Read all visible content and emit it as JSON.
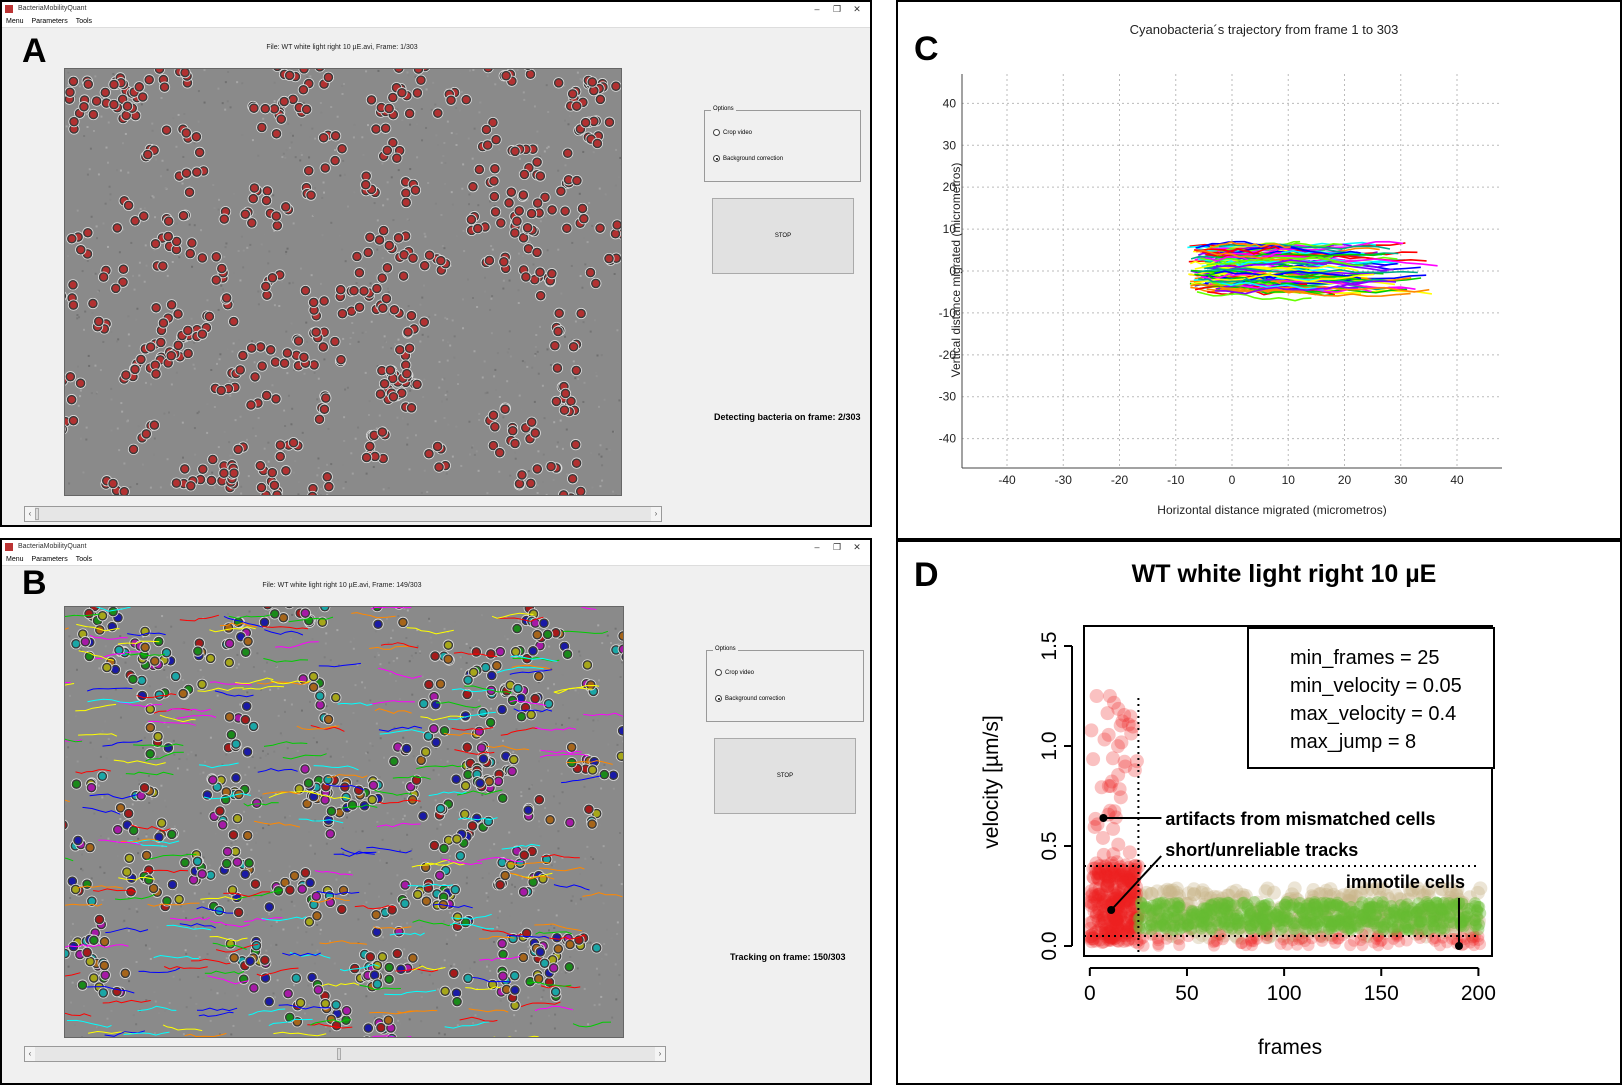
{
  "panels": {
    "a": "A",
    "b": "B",
    "c": "C",
    "d": "D"
  },
  "app": {
    "title": "BacteriaMobilityQuant",
    "menu": [
      "Menu",
      "Parameters",
      "Tools"
    ],
    "options_title": "Options",
    "crop_label": "Crop video",
    "bg_label": "Background correction",
    "stop_label": "STOP"
  },
  "window_a": {
    "file_label": "File: WT white light right 10 µE.avi, Frame: 1/303",
    "status": "Detecting bacteria on frame: 2/303",
    "crop_checked": false,
    "bg_checked": true
  },
  "window_b": {
    "file_label": "File: WT white light right 10 µE.avi, Frame: 149/303",
    "status": "Tracking on frame: 150/303",
    "crop_checked": false,
    "bg_checked": true
  },
  "colors": {
    "cell_red": "#c83030",
    "track_colors": [
      "#ff0000",
      "#0000ff",
      "#00cc00",
      "#ffff00",
      "#00ffff",
      "#ff00ff",
      "#ff8800"
    ],
    "green_points": "#66bb33",
    "tan_points": "#c8b48a",
    "red_points": "#ee2222"
  },
  "chart_data": [
    {
      "type": "line",
      "title": "Cyanobacteria´s trajectory from frame 1 to 303",
      "xlabel": "Horizontal distance migrated (micrometros)",
      "ylabel": "Vertical distance migrated (micrometros)",
      "xticks": [
        "-40",
        "-30",
        "-20",
        "-10",
        "0",
        "10",
        "20",
        "30",
        "40"
      ],
      "yticks": [
        "40",
        "30",
        "20",
        "10",
        "0",
        "-10",
        "-20",
        "-30",
        "-40"
      ],
      "xlim": [
        -48,
        48
      ],
      "ylim": [
        -47,
        47
      ],
      "grid": true,
      "trajectory_extent": {
        "x": [
          -8,
          38
        ],
        "y": [
          -8,
          7
        ]
      }
    },
    {
      "type": "scatter",
      "title": "WT white light right 10 µE",
      "xlabel": "frames",
      "ylabel": "velocity [µm/s]",
      "xticks": [
        "0",
        "50",
        "100",
        "150",
        "200"
      ],
      "yticks": [
        "0.0",
        "0.5",
        "1.0",
        "1.5"
      ],
      "xlim": [
        -3,
        207
      ],
      "ylim": [
        -0.05,
        1.6
      ],
      "legend": [
        "min_frames = 25",
        "min_velocity = 0.05",
        "max_velocity = 0.4",
        "max_jump = 8"
      ],
      "thresholds": {
        "min_frames": 25,
        "min_velocity": 0.05,
        "max_velocity": 0.4
      },
      "annotations": [
        {
          "text": "artifacts from mismatched cells",
          "x": 7,
          "y": 0.64
        },
        {
          "text": "short/unreliable tracks",
          "x": 11,
          "y": 0.18
        },
        {
          "text": "immotile cells",
          "x": 190,
          "y": 0.0
        }
      ]
    }
  ]
}
